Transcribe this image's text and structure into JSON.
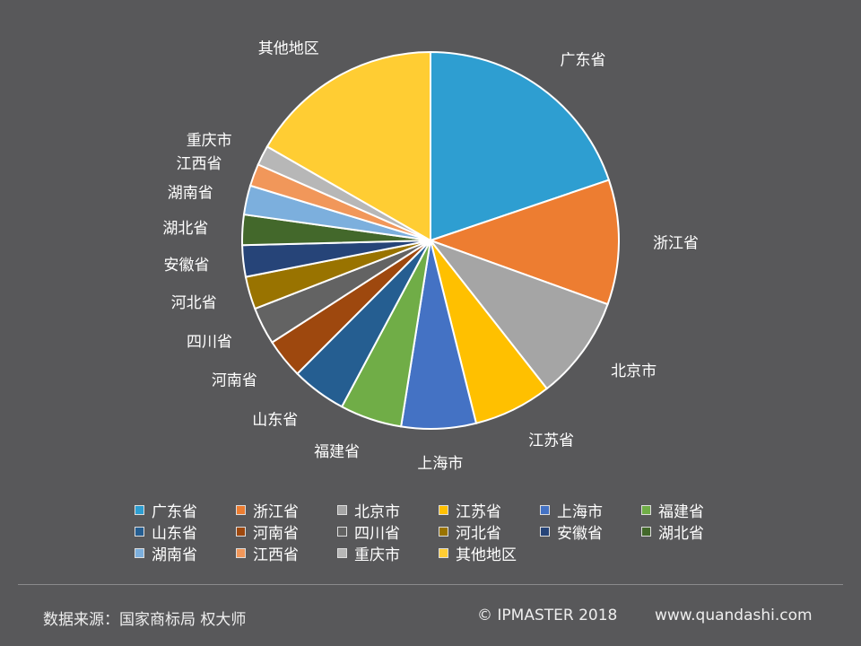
{
  "chart_data": {
    "type": "pie",
    "title": "",
    "categories": [
      "广东省",
      "浙江省",
      "北京市",
      "江苏省",
      "上海市",
      "福建省",
      "山东省",
      "河南省",
      "四川省",
      "河北省",
      "安徽省",
      "湖北省",
      "湖南省",
      "江西省",
      "重庆市",
      "其他地区"
    ],
    "values": [
      19.8,
      10.7,
      8.9,
      6.7,
      6.4,
      5.3,
      4.7,
      3.4,
      3.2,
      2.8,
      2.7,
      2.6,
      2.5,
      1.9,
      1.7,
      16.7
    ],
    "colors": [
      "#2e9ed1",
      "#ed7d31",
      "#a5a5a5",
      "#ffc000",
      "#4472c4",
      "#70ad47",
      "#255e91",
      "#9e480e",
      "#636363",
      "#997300",
      "#264478",
      "#43682b",
      "#7cafdd",
      "#f1975a",
      "#b7b7b7",
      "#ffcd33"
    ],
    "legend_position": "bottom"
  },
  "footer": {
    "source": "数据来源：国家商标局  权大师",
    "copyright": "© IPMASTER  2018",
    "url": "www.quandashi.com"
  }
}
